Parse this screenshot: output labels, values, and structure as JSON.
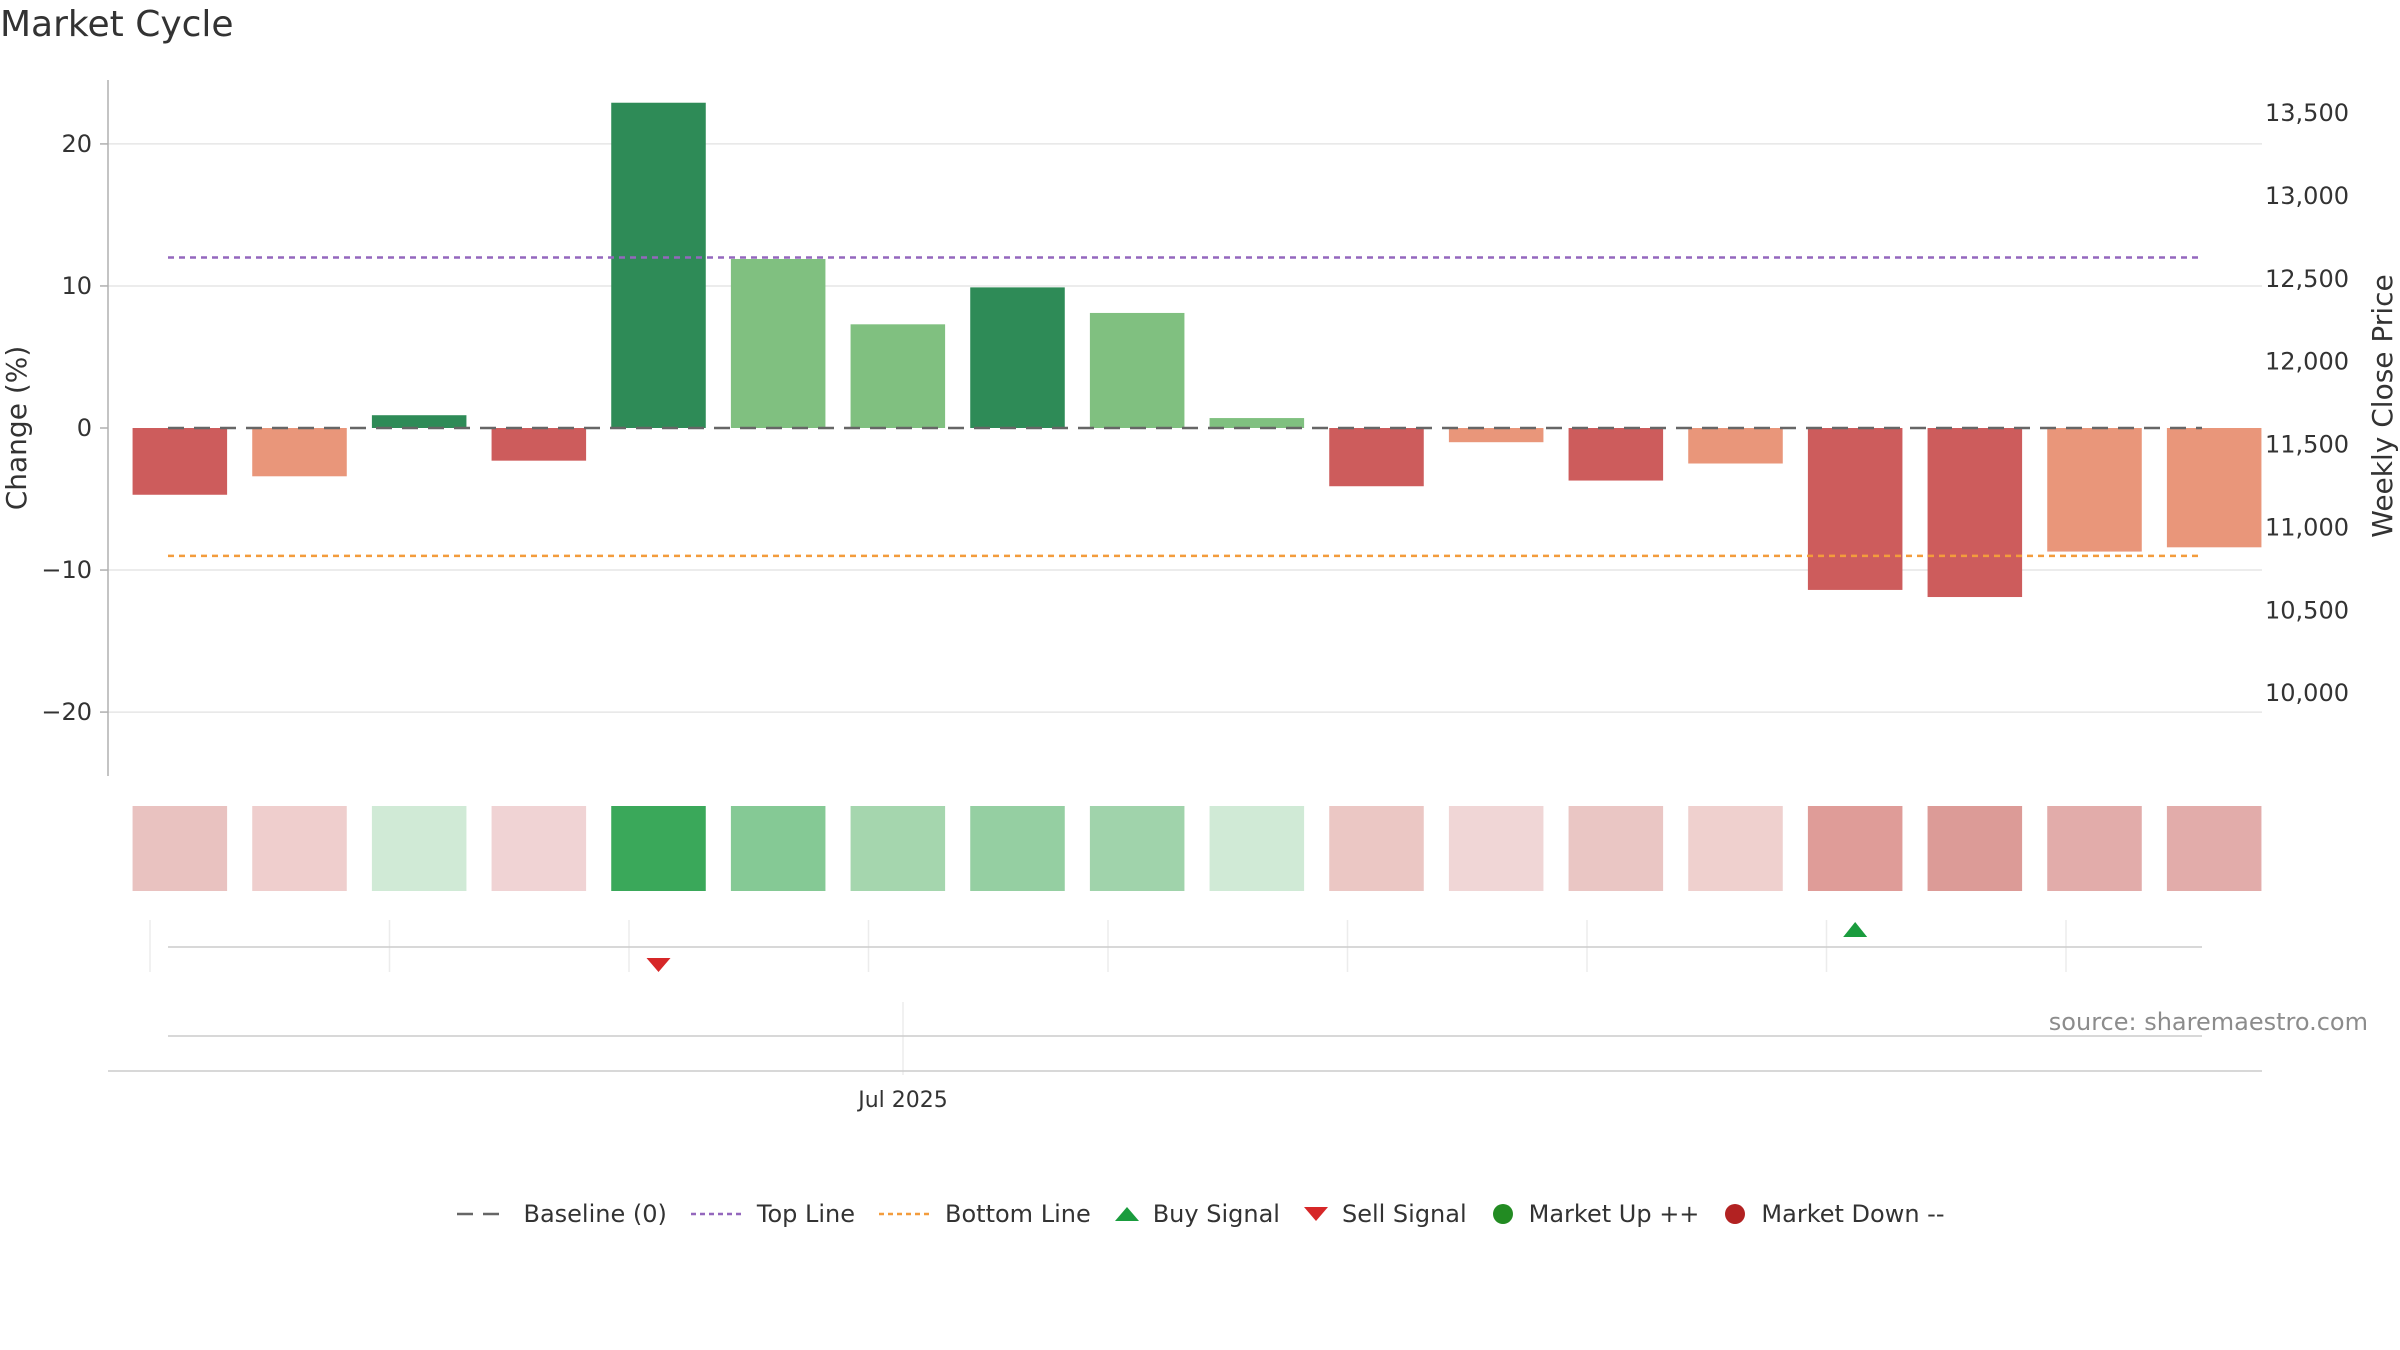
{
  "chart_data": {
    "type": "bar",
    "title": "Market Cycle",
    "ylabel": "Change (%)",
    "y2label": "Weekly Close Price",
    "ylim": [
      -24.5,
      24.5
    ],
    "y2lim": [
      9500,
      13700
    ],
    "yticks": [
      {
        "value": 20,
        "label": "20"
      },
      {
        "value": 10,
        "label": "10"
      },
      {
        "value": 0,
        "label": "0"
      },
      {
        "value": -10,
        "label": "−10"
      },
      {
        "value": -20,
        "label": "−20"
      }
    ],
    "y2ticks": [
      {
        "value": 13500,
        "label": "13,500"
      },
      {
        "value": 13000,
        "label": "13,000"
      },
      {
        "value": 12500,
        "label": "12,500"
      },
      {
        "value": 12000,
        "label": "12,000"
      },
      {
        "value": 11500,
        "label": "11,500"
      },
      {
        "value": 11000,
        "label": "11,000"
      },
      {
        "value": 10500,
        "label": "10,500"
      },
      {
        "value": 10000,
        "label": "10,000"
      }
    ],
    "grid": true,
    "values": [
      -4.7,
      -3.4,
      0.9,
      -2.3,
      22.9,
      11.9,
      7.3,
      9.9,
      8.1,
      0.7,
      -4.1,
      -1.0,
      -3.7,
      -2.5,
      -11.4,
      -11.9,
      -8.7,
      -8.4
    ],
    "bar_colors": [
      "#cd5c5c",
      "#e9967a",
      "#2e8b57",
      "#cd5c5c",
      "#2e8b57",
      "#80c080",
      "#80c080",
      "#2e8b57",
      "#80c080",
      "#80c080",
      "#cd5c5c",
      "#e9967a",
      "#cd5c5c",
      "#e9967a",
      "#cd5c5c",
      "#cd5c5c",
      "#e9967a",
      "#e9967a"
    ],
    "heat_colors": [
      "#e9c2c0",
      "#efcecd",
      "#d0ead6",
      "#f0d3d4",
      "#3aa85a",
      "#85c995",
      "#a5d6ae",
      "#95cfa2",
      "#a0d3ab",
      "#d0ead6",
      "#ebc7c4",
      "#f0d6d6",
      "#eac6c4",
      "#efd0ce",
      "#df9c98",
      "#dc9b97",
      "#e2acaa",
      "#e2acaa"
    ],
    "top_line": 12,
    "bottom_line": -9,
    "signals": [
      {
        "type": "sell",
        "index": 4
      },
      {
        "type": "buy",
        "index": 14
      }
    ],
    "xtick": "Jul 2025",
    "source": "source: sharemaestro.com",
    "legend_position": "bottom-center",
    "legend": [
      {
        "key": "baseline",
        "label": "Baseline (0)",
        "color": "#666666"
      },
      {
        "key": "top",
        "label": "Top Line",
        "color": "#9467bd"
      },
      {
        "key": "bottom",
        "label": "Bottom Line",
        "color": "#f39c3c"
      },
      {
        "key": "buy",
        "label": "Buy Signal",
        "color": "#1a9c3e"
      },
      {
        "key": "sell",
        "label": "Sell Signal",
        "color": "#d62728"
      },
      {
        "key": "up",
        "label": "Market Up ++",
        "color": "#228b22"
      },
      {
        "key": "down",
        "label": "Market Down --",
        "color": "#b22222"
      }
    ]
  }
}
